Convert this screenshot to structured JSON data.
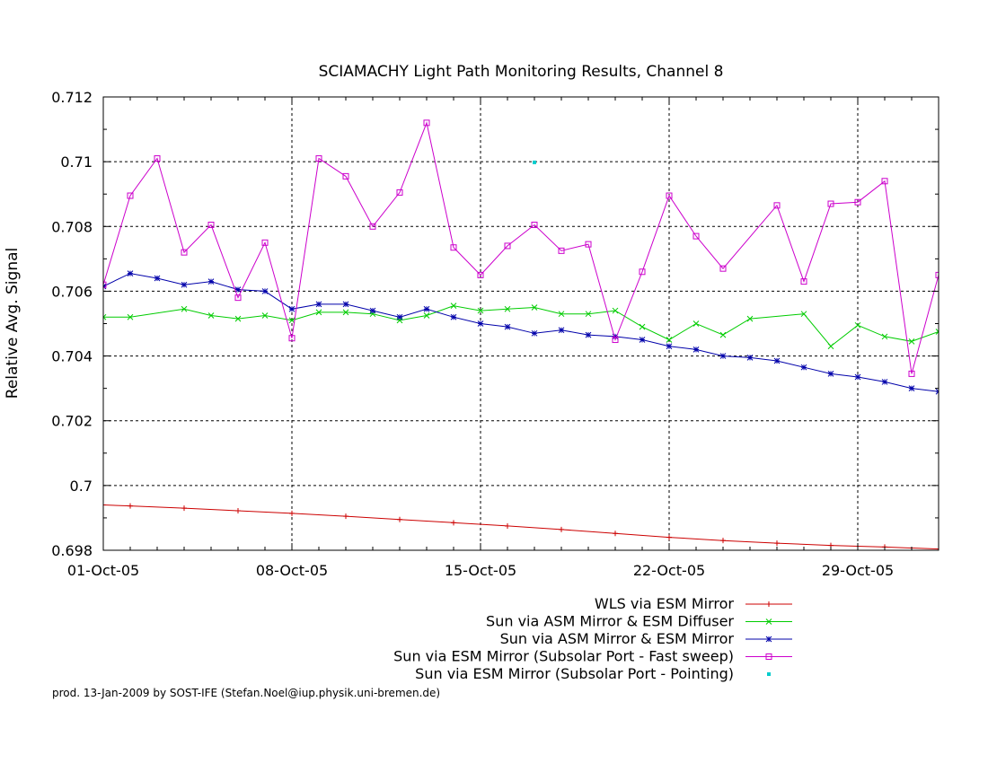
{
  "chart_data": {
    "type": "line",
    "title": "SCIAMACHY Light Path Monitoring Results, Channel 8",
    "xlabel": "",
    "ylabel": "Relative Avg. Signal",
    "x_unit": "date",
    "xlim": [
      "2005-10-01",
      "2005-11-01"
    ],
    "ylim": [
      0.698,
      0.712
    ],
    "x_ticks": [
      {
        "x": "2005-10-01",
        "label": "01-Oct-05"
      },
      {
        "x": "2005-10-08",
        "label": "08-Oct-05"
      },
      {
        "x": "2005-10-15",
        "label": "15-Oct-05"
      },
      {
        "x": "2005-10-22",
        "label": "22-Oct-05"
      },
      {
        "x": "2005-10-29",
        "label": "29-Oct-05"
      }
    ],
    "y_ticks": [
      {
        "y": 0.698,
        "label": "0.698"
      },
      {
        "y": 0.7,
        "label": "0.7"
      },
      {
        "y": 0.702,
        "label": "0.702"
      },
      {
        "y": 0.704,
        "label": "0.704"
      },
      {
        "y": 0.706,
        "label": "0.706"
      },
      {
        "y": 0.708,
        "label": "0.708"
      },
      {
        "y": 0.71,
        "label": "0.71"
      },
      {
        "y": 0.712,
        "label": "0.712"
      }
    ],
    "grid": true,
    "legend_position": "bottom",
    "series": [
      {
        "name": "WLS via ESM Mirror",
        "color": "#cc0000",
        "marker": "plus",
        "points": [
          [
            "2005-10-01",
            0.6994
          ],
          [
            "2005-10-02",
            0.69937
          ],
          [
            "2005-10-04",
            0.6993
          ],
          [
            "2005-10-06",
            0.69922
          ],
          [
            "2005-10-08",
            0.69914
          ],
          [
            "2005-10-10",
            0.69905
          ],
          [
            "2005-10-12",
            0.69895
          ],
          [
            "2005-10-14",
            0.69885
          ],
          [
            "2005-10-16",
            0.69875
          ],
          [
            "2005-10-18",
            0.69864
          ],
          [
            "2005-10-20",
            0.69852
          ],
          [
            "2005-10-22",
            0.6984
          ],
          [
            "2005-10-24",
            0.6983
          ],
          [
            "2005-10-26",
            0.69822
          ],
          [
            "2005-10-28",
            0.69815
          ],
          [
            "2005-10-30",
            0.6981
          ],
          [
            "2005-11-01",
            0.69804
          ]
        ]
      },
      {
        "name": "Sun via ASM Mirror & ESM Diffuser",
        "color": "#00cc00",
        "marker": "cross",
        "points": [
          [
            "2005-10-01",
            0.7052
          ],
          [
            "2005-10-02",
            0.7052
          ],
          [
            "2005-10-04",
            0.70545
          ],
          [
            "2005-10-05",
            0.70525
          ],
          [
            "2005-10-06",
            0.70515
          ],
          [
            "2005-10-07",
            0.70525
          ],
          [
            "2005-10-08",
            0.7051
          ],
          [
            "2005-10-09",
            0.70535
          ],
          [
            "2005-10-10",
            0.70535
          ],
          [
            "2005-10-11",
            0.7053
          ],
          [
            "2005-10-12",
            0.7051
          ],
          [
            "2005-10-13",
            0.70525
          ],
          [
            "2005-10-14",
            0.70555
          ],
          [
            "2005-10-15",
            0.7054
          ],
          [
            "2005-10-16",
            0.70545
          ],
          [
            "2005-10-17",
            0.7055
          ],
          [
            "2005-10-18",
            0.7053
          ],
          [
            "2005-10-19",
            0.7053
          ],
          [
            "2005-10-20",
            0.7054
          ],
          [
            "2005-10-21",
            0.7049
          ],
          [
            "2005-10-22",
            0.7045
          ],
          [
            "2005-10-23",
            0.705
          ],
          [
            "2005-10-24",
            0.70465
          ],
          [
            "2005-10-25",
            0.70515
          ],
          [
            "2005-10-27",
            0.7053
          ],
          [
            "2005-10-28",
            0.7043
          ],
          [
            "2005-10-29",
            0.70495
          ],
          [
            "2005-10-30",
            0.7046
          ],
          [
            "2005-10-31",
            0.70445
          ],
          [
            "2005-11-01",
            0.70475
          ],
          [
            "2005-11-02",
            0.70525
          ]
        ]
      },
      {
        "name": "Sun via ASM Mirror & ESM Mirror",
        "color": "#0000aa",
        "marker": "star",
        "points": [
          [
            "2005-10-01",
            0.70615
          ],
          [
            "2005-10-02",
            0.70655
          ],
          [
            "2005-10-03",
            0.7064
          ],
          [
            "2005-10-04",
            0.7062
          ],
          [
            "2005-10-05",
            0.7063
          ],
          [
            "2005-10-06",
            0.70605
          ],
          [
            "2005-10-07",
            0.706
          ],
          [
            "2005-10-08",
            0.70545
          ],
          [
            "2005-10-09",
            0.7056
          ],
          [
            "2005-10-10",
            0.7056
          ],
          [
            "2005-10-11",
            0.7054
          ],
          [
            "2005-10-12",
            0.7052
          ],
          [
            "2005-10-13",
            0.70545
          ],
          [
            "2005-10-14",
            0.7052
          ],
          [
            "2005-10-15",
            0.705
          ],
          [
            "2005-10-16",
            0.7049
          ],
          [
            "2005-10-17",
            0.7047
          ],
          [
            "2005-10-18",
            0.7048
          ],
          [
            "2005-10-19",
            0.70465
          ],
          [
            "2005-10-20",
            0.7046
          ],
          [
            "2005-10-21",
            0.7045
          ],
          [
            "2005-10-22",
            0.7043
          ],
          [
            "2005-10-23",
            0.7042
          ],
          [
            "2005-10-24",
            0.704
          ],
          [
            "2005-10-25",
            0.70395
          ],
          [
            "2005-10-26",
            0.70385
          ],
          [
            "2005-10-27",
            0.70365
          ],
          [
            "2005-10-28",
            0.70345
          ],
          [
            "2005-10-29",
            0.70335
          ],
          [
            "2005-10-30",
            0.7032
          ],
          [
            "2005-10-31",
            0.703
          ],
          [
            "2005-11-01",
            0.7029
          ],
          [
            "2005-11-02",
            0.70285
          ]
        ]
      },
      {
        "name": "Sun via ESM Mirror (Subsolar Port - Fast sweep)",
        "color": "#cc00cc",
        "marker": "square",
        "points": [
          [
            "2005-10-01",
            0.7062
          ],
          [
            "2005-10-02",
            0.70895
          ],
          [
            "2005-10-03",
            0.7101
          ],
          [
            "2005-10-04",
            0.7072
          ],
          [
            "2005-10-05",
            0.70805
          ],
          [
            "2005-10-06",
            0.7058
          ],
          [
            "2005-10-07",
            0.7075
          ],
          [
            "2005-10-08",
            0.70455
          ],
          [
            "2005-10-09",
            0.7101
          ],
          [
            "2005-10-10",
            0.70955
          ],
          [
            "2005-10-11",
            0.708
          ],
          [
            "2005-10-12",
            0.70905
          ],
          [
            "2005-10-13",
            0.7112
          ],
          [
            "2005-10-14",
            0.70735
          ],
          [
            "2005-10-15",
            0.7065
          ],
          [
            "2005-10-16",
            0.7074
          ],
          [
            "2005-10-17",
            0.70805
          ],
          [
            "2005-10-18",
            0.70725
          ],
          [
            "2005-10-19",
            0.70745
          ],
          [
            "2005-10-20",
            0.7045
          ],
          [
            "2005-10-21",
            0.7066
          ],
          [
            "2005-10-22",
            0.70895
          ],
          [
            "2005-10-23",
            0.7077
          ],
          [
            "2005-10-24",
            0.7067
          ],
          [
            "2005-10-26",
            0.70865
          ],
          [
            "2005-10-27",
            0.7063
          ],
          [
            "2005-10-28",
            0.7087
          ],
          [
            "2005-10-29",
            0.70875
          ],
          [
            "2005-10-30",
            0.7094
          ],
          [
            "2005-10-31",
            0.70345
          ],
          [
            "2005-11-01",
            0.7065
          ]
        ]
      },
      {
        "name": "Sun via ESM Mirror (Subsolar Port - Pointing)",
        "color": "#00cccc",
        "marker": "dot",
        "points": [
          [
            "2005-10-17",
            0.70998
          ]
        ]
      }
    ]
  },
  "footer": {
    "text": "prod. 13-Jan-2009 by SOST-IFE (Stefan.Noel@iup.physik.uni-bremen.de)"
  }
}
